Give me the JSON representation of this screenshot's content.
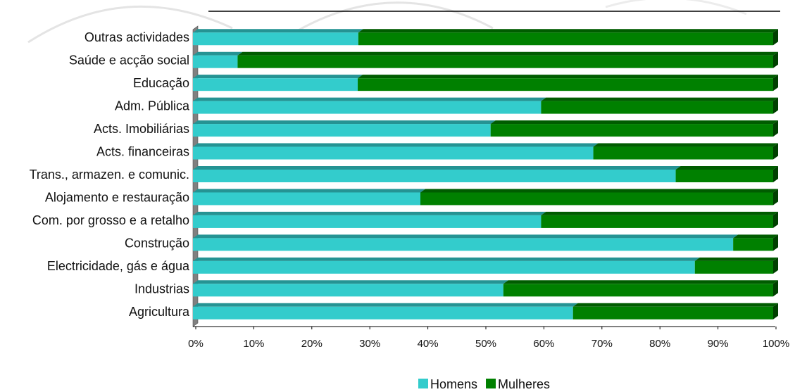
{
  "chart_data": {
    "type": "bar",
    "orientation": "horizontal",
    "stacked": "percent",
    "categories": [
      "Outras actividades",
      "Saúde e acção social",
      "Educação",
      "Adm. Pública",
      "Acts. Imobiliárias",
      "Acts. financeiras",
      "Trans., armazen. e comunic.",
      "Alojamento e restauração",
      "Com. por grosso e a retalho",
      "Construção",
      "Electricidade, gás e água",
      "Industrias",
      "Agricultura"
    ],
    "series": [
      {
        "name": "Homens",
        "color": "#33CCCC",
        "values": [
          28.5,
          7.7,
          28.4,
          60.0,
          51.3,
          69.0,
          83.2,
          39.2,
          60.0,
          93.1,
          86.5,
          53.5,
          65.5
        ]
      },
      {
        "name": "Mulheres",
        "color": "#008000",
        "values": [
          71.5,
          92.3,
          71.6,
          40.0,
          48.7,
          31.0,
          16.8,
          60.8,
          40.0,
          6.9,
          13.5,
          46.5,
          34.5
        ]
      }
    ],
    "x_ticks": [
      "0%",
      "10%",
      "20%",
      "30%",
      "40%",
      "50%",
      "60%",
      "70%",
      "80%",
      "90%",
      "100%"
    ],
    "xlim": [
      0,
      100
    ],
    "grid": false,
    "legend_position": "bottom"
  }
}
